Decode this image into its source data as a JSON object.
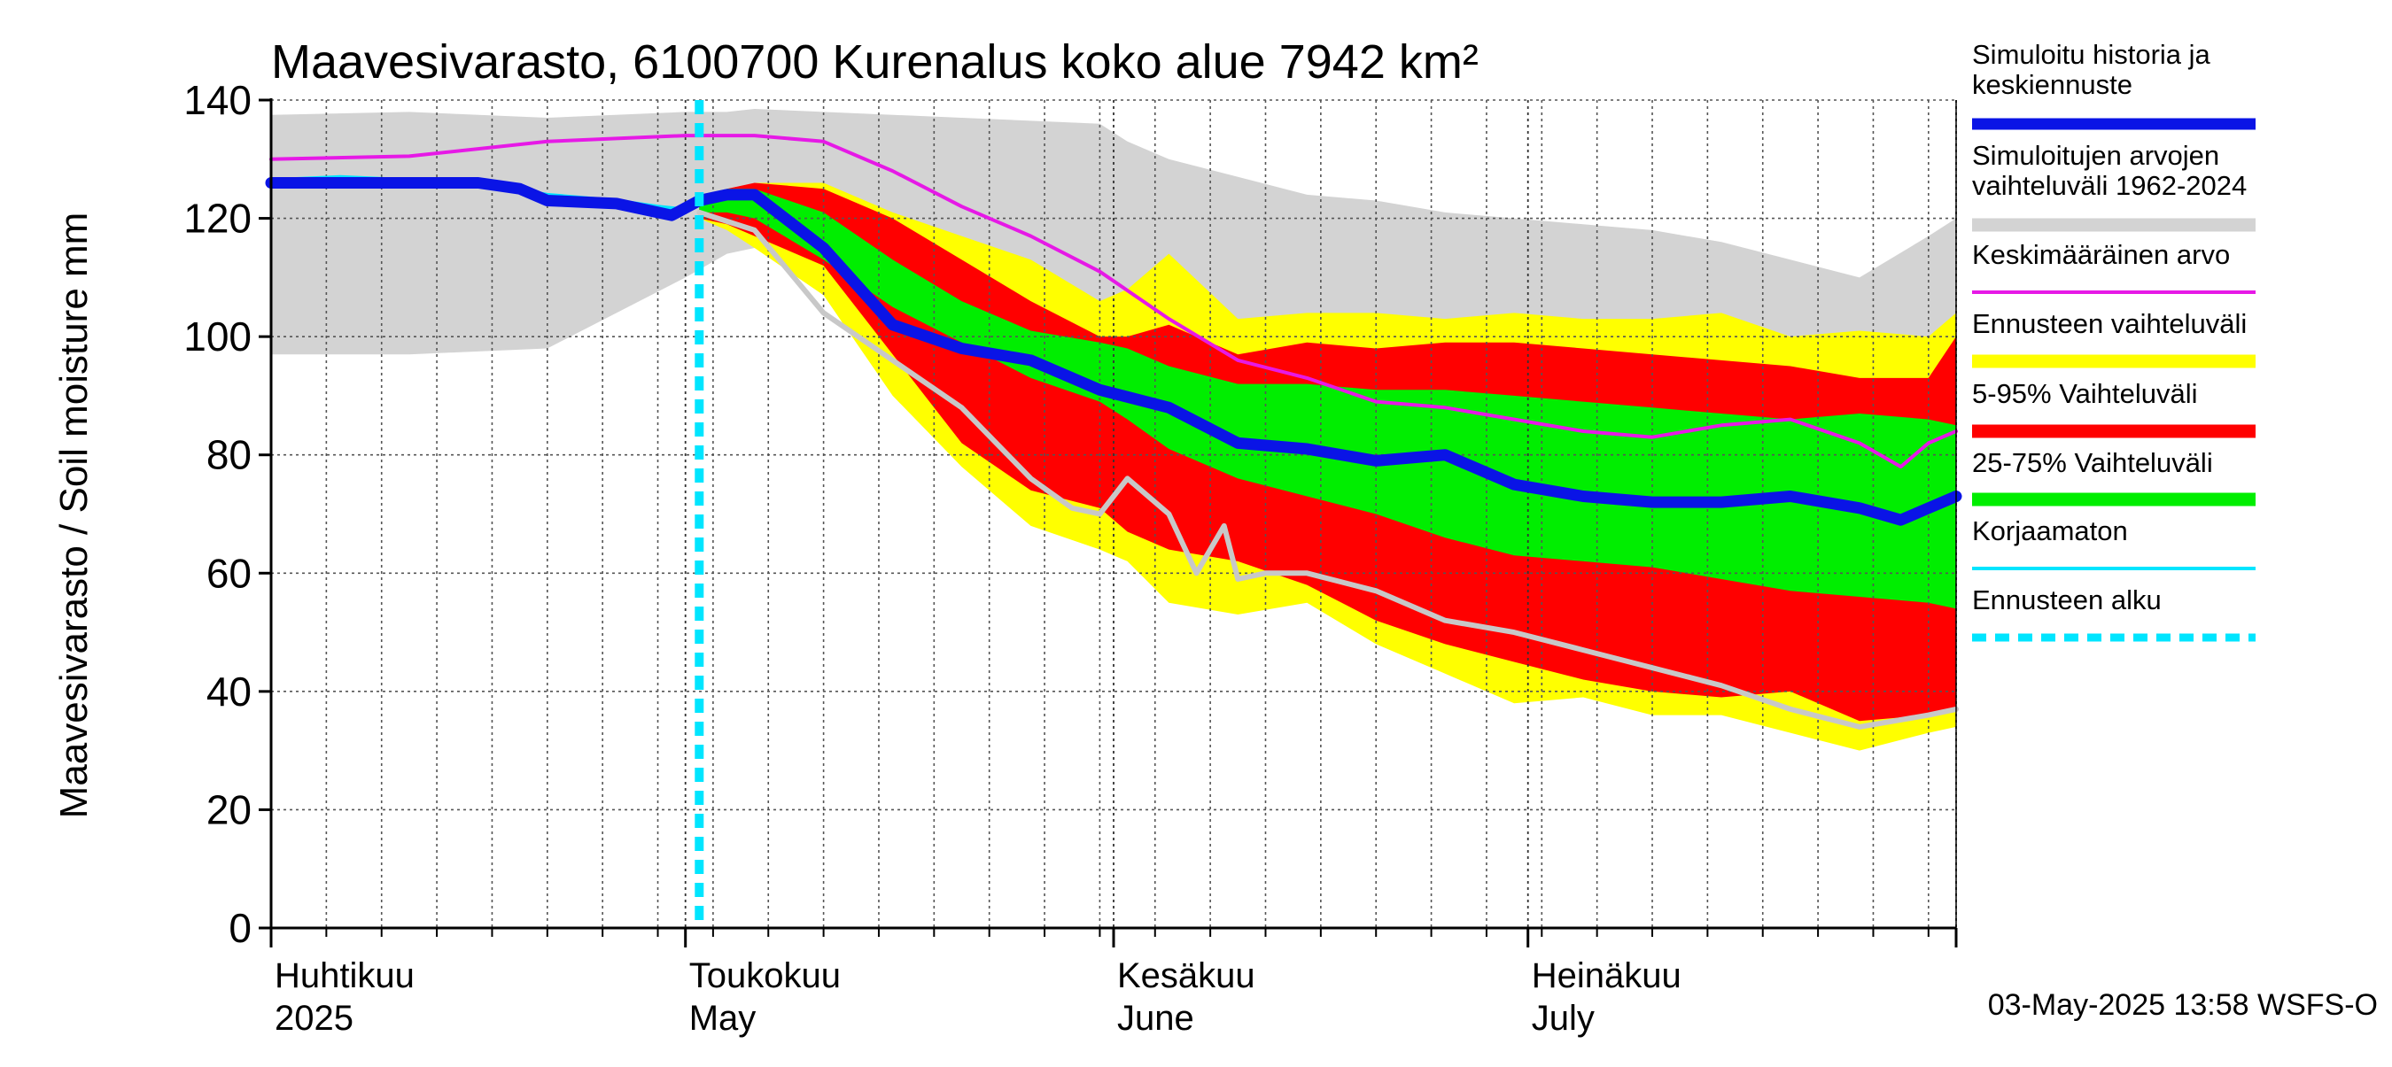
{
  "chart_data": {
    "type": "area",
    "title": "Maavesivarasto, 6100700 Kurenalus koko alue 7942 km²",
    "ylabel": "Maavesivarasto / Soil moisture   mm",
    "xlabel": "",
    "ylim": [
      0,
      140
    ],
    "yticks": [
      0,
      20,
      40,
      60,
      80,
      100,
      120,
      140
    ],
    "grid": true,
    "x_unit": "day index from 1 April 2025",
    "xlim": [
      0,
      122
    ],
    "forecast_start_day": 31,
    "month_labels": [
      {
        "day": 0,
        "fi": "Huhtikuu",
        "en": "2025"
      },
      {
        "day": 30,
        "fi": "Toukokuu",
        "en": "May"
      },
      {
        "day": 61,
        "fi": "Kesäkuu",
        "en": "June"
      },
      {
        "day": 91,
        "fi": "Heinäkuu",
        "en": "July"
      }
    ],
    "month_boundaries": [
      0,
      30,
      61,
      91,
      122
    ],
    "legend_position": "right",
    "legend": [
      {
        "label": "Simuloitu historia ja keskiennuste",
        "color": "#0a14e6",
        "style": "thick"
      },
      {
        "label": "Simuloitujen arvojen vaihteluväli 1962-2024",
        "color": "#d3d3d3",
        "style": "band"
      },
      {
        "label": "Keskimääräinen arvo",
        "color": "#e619e6",
        "style": "line"
      },
      {
        "label": "Ennusteen vaihteluväli",
        "color": "#ffff00",
        "style": "band"
      },
      {
        "label": "5-95% Vaihteluväli",
        "color": "#ff0000",
        "style": "band"
      },
      {
        "label": "25-75% Vaihteluväli",
        "color": "#00ee00",
        "style": "band"
      },
      {
        "label": "Korjaamaton",
        "color": "#00e5ff",
        "style": "line"
      },
      {
        "label": "Ennusteen alku",
        "color": "#00e5ff",
        "style": "dashed"
      }
    ],
    "series": [
      {
        "name": "Simuloitujen arvojen vaihteluväli 1962-2024",
        "kind": "band",
        "color": "#d3d3d3",
        "x": [
          0,
          10,
          20,
          30,
          33,
          35,
          40,
          50,
          60,
          62,
          65,
          70,
          75,
          80,
          85,
          90,
          95,
          100,
          105,
          110,
          115,
          120,
          122
        ],
        "upper": [
          137.5,
          138,
          137,
          138,
          138,
          138.5,
          138,
          137,
          136,
          133,
          130,
          127,
          124,
          123,
          121,
          120,
          119,
          118,
          116,
          113,
          110,
          117,
          120
        ],
        "lower": [
          97,
          97,
          98,
          110,
          114,
          115,
          112,
          100,
          90,
          85,
          80,
          75,
          72,
          72,
          70,
          68,
          66,
          63,
          60,
          57,
          54,
          55,
          58
        ]
      },
      {
        "name": "Ennusteen vaihteluväli",
        "kind": "band",
        "color": "#ffff00",
        "x": [
          31,
          33,
          35,
          40,
          45,
          50,
          55,
          60,
          62,
          65,
          70,
          75,
          80,
          85,
          90,
          95,
          100,
          105,
          110,
          115,
          120,
          122
        ],
        "upper": [
          122,
          124,
          126,
          126,
          121,
          117,
          113,
          106,
          108,
          114,
          103,
          104,
          104,
          103,
          104,
          103,
          103,
          104,
          100,
          101,
          100,
          104
        ],
        "lower": [
          120,
          118,
          115,
          107,
          90,
          78,
          68,
          64,
          62,
          55,
          53,
          55,
          48,
          43,
          38,
          39,
          36,
          36,
          33,
          30,
          33,
          34
        ]
      },
      {
        "name": "5-95% Vaihteluväli",
        "kind": "band",
        "color": "#ff0000",
        "x": [
          31,
          33,
          35,
          40,
          45,
          50,
          55,
          60,
          62,
          65,
          70,
          75,
          80,
          85,
          90,
          95,
          100,
          105,
          110,
          115,
          120,
          122
        ],
        "upper": [
          122,
          125,
          126,
          125,
          120,
          113,
          106,
          100,
          100,
          102,
          97,
          99,
          98,
          99,
          99,
          98,
          97,
          96,
          95,
          93,
          93,
          100
        ],
        "lower": [
          120,
          119,
          117,
          112,
          97,
          82,
          74,
          71,
          67,
          64,
          62,
          58,
          52,
          48,
          45,
          42,
          40,
          39,
          40,
          35,
          36,
          37
        ]
      },
      {
        "name": "25-75% Vaihteluväli",
        "kind": "band",
        "color": "#00ee00",
        "x": [
          31,
          33,
          35,
          40,
          45,
          50,
          55,
          60,
          62,
          65,
          70,
          75,
          80,
          85,
          90,
          95,
          100,
          105,
          110,
          115,
          120,
          122
        ],
        "upper": [
          123,
          125,
          125,
          121,
          113,
          106,
          101,
          99,
          98,
          95,
          92,
          92,
          91,
          91,
          90,
          89,
          88,
          87,
          86,
          87,
          86,
          85
        ],
        "lower": [
          121,
          121,
          120,
          113,
          105,
          99,
          93,
          89,
          86,
          81,
          76,
          73,
          70,
          66,
          63,
          62,
          61,
          59,
          57,
          56,
          55,
          54
        ]
      },
      {
        "name": "Keskimääräinen arvo",
        "kind": "line",
        "color": "#e619e6",
        "x": [
          0,
          10,
          20,
          25,
          30,
          35,
          40,
          45,
          50,
          55,
          60,
          65,
          70,
          75,
          80,
          85,
          90,
          95,
          100,
          105,
          110,
          115,
          118,
          120,
          122
        ],
        "values": [
          130,
          130.5,
          133,
          133.5,
          134,
          134,
          133,
          128,
          122,
          117,
          111,
          103,
          96,
          93,
          89,
          88,
          86,
          84,
          83,
          85,
          86,
          82,
          78,
          82,
          84
        ]
      },
      {
        "name": "Korjaamaton",
        "kind": "line",
        "color": "#00e5ff",
        "x": [
          0,
          5,
          10,
          15,
          20,
          25,
          28,
          30
        ],
        "values": [
          126.5,
          127,
          126.5,
          126,
          124,
          123,
          122,
          121.5
        ]
      },
      {
        "name": "Simuloitu historia ja keskiennuste",
        "kind": "line",
        "color": "#0a14e6",
        "x": [
          0,
          5,
          10,
          15,
          18,
          20,
          25,
          28,
          29,
          31,
          33,
          35,
          40,
          45,
          50,
          55,
          60,
          65,
          70,
          75,
          80,
          85,
          90,
          95,
          100,
          105,
          110,
          115,
          118,
          120,
          122
        ],
        "values": [
          126,
          126,
          126,
          126,
          125,
          123,
          122.5,
          121,
          120.5,
          123,
          124,
          124,
          115,
          102,
          98,
          96,
          91,
          88,
          82,
          81,
          79,
          80,
          75,
          73,
          72,
          72,
          73,
          71,
          69,
          71,
          73
        ]
      },
      {
        "name": "Median-like grey trace",
        "kind": "line",
        "color": "#c8c8c8",
        "x": [
          31,
          35,
          40,
          45,
          50,
          55,
          58,
          60,
          62,
          65,
          67,
          69,
          70,
          72,
          75,
          80,
          85,
          90,
          95,
          100,
          105,
          110,
          115,
          120,
          122
        ],
        "values": [
          121,
          118,
          104,
          96,
          88,
          76,
          71,
          70,
          76,
          70,
          60,
          68,
          59,
          60,
          60,
          57,
          52,
          50,
          47,
          44,
          41,
          37,
          34,
          36,
          37
        ]
      }
    ]
  },
  "footer": {
    "timestamp": "03-May-2025 13:58 WSFS-O"
  }
}
